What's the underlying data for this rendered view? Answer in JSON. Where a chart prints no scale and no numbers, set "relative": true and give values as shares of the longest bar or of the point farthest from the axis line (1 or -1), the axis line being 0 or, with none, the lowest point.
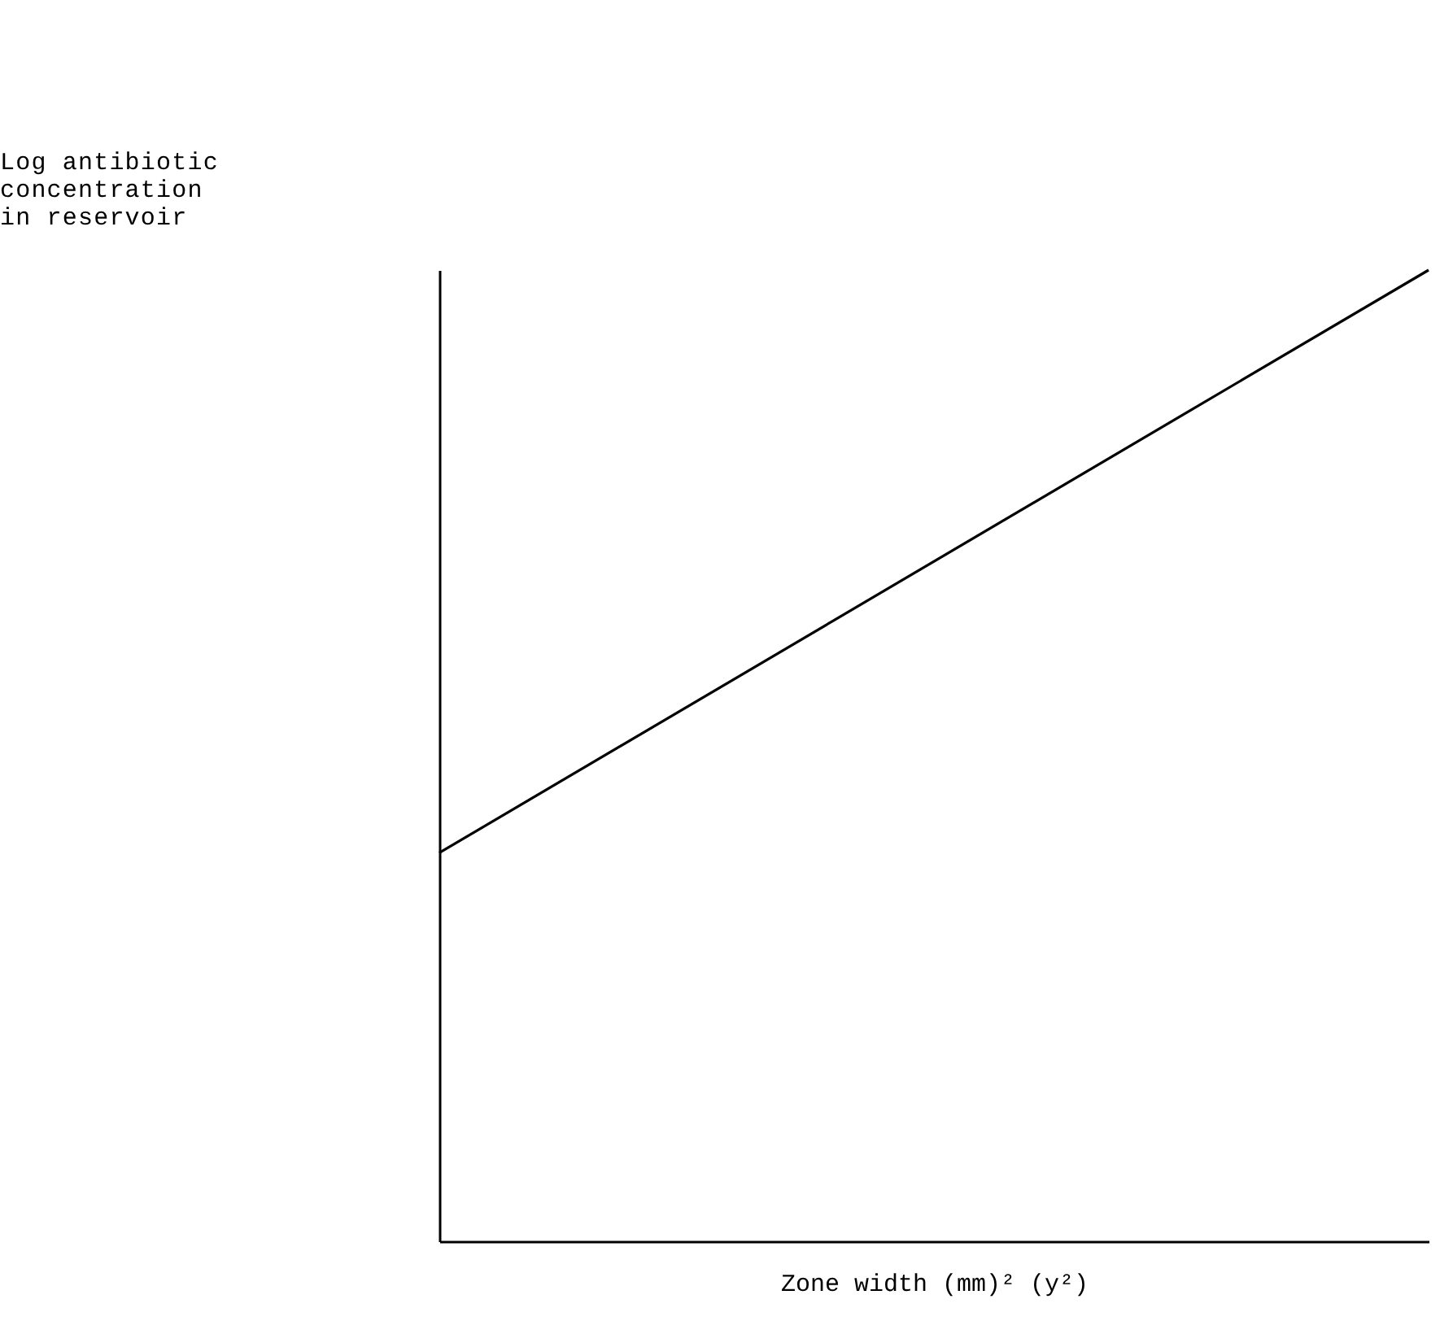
{
  "chart_data": {
    "type": "line",
    "relative": true,
    "xlabel": "Zone width (mm)² (y²)",
    "ylabel": "Log antibiotic concentration in reservoir",
    "categories": [
      null,
      null
    ],
    "series": [
      {
        "color": "#000000",
        "values": [
          0.4,
          1
        ]
      }
    ],
    "grid": false,
    "tick_labels": false
  }
}
